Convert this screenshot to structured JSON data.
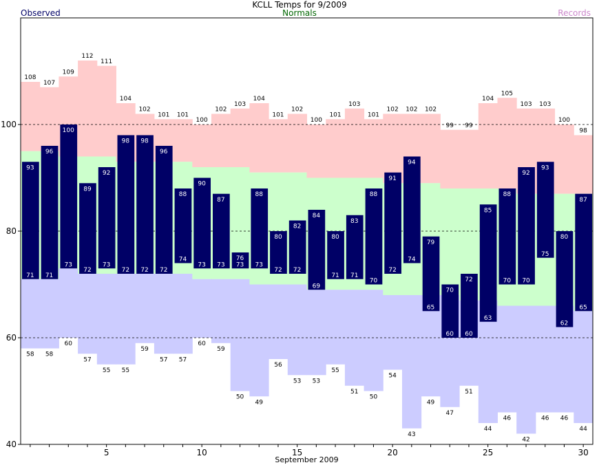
{
  "chart_data": {
    "type": "bar",
    "title": "KCLL Temps for 9/2009",
    "xlabel": "September 2009",
    "ylabel": "",
    "xlim": [
      0.5,
      30.5
    ],
    "ylim": [
      40,
      120
    ],
    "yticks": [
      40,
      60,
      80,
      100
    ],
    "xticks": [
      5,
      10,
      15,
      20,
      25,
      30
    ],
    "gridlines": [
      60,
      80,
      100
    ],
    "legend": {
      "observed": "Observed",
      "normals": "Normals",
      "records": "Records"
    },
    "colors": {
      "observed": "#000066",
      "normals": "#ccffcc",
      "record_high": "#ffcccc",
      "record_low": "#ccccff",
      "legend_observed": "#000066",
      "legend_normals": "#006600",
      "legend_records": "#cc88cc"
    },
    "days": [
      1,
      2,
      3,
      4,
      5,
      6,
      7,
      8,
      9,
      10,
      11,
      12,
      13,
      14,
      15,
      16,
      17,
      18,
      19,
      20,
      21,
      22,
      23,
      24,
      25,
      26,
      27,
      28,
      29,
      30
    ],
    "series": [
      {
        "name": "Observed high",
        "values": [
          93,
          96,
          100,
          89,
          92,
          98,
          98,
          96,
          88,
          90,
          87,
          76,
          88,
          80,
          82,
          84,
          80,
          83,
          88,
          91,
          94,
          79,
          70,
          72,
          85,
          88,
          92,
          93,
          80,
          87
        ]
      },
      {
        "name": "Observed low",
        "values": [
          71,
          71,
          73,
          72,
          73,
          72,
          72,
          72,
          74,
          73,
          73,
          73,
          73,
          72,
          72,
          69,
          71,
          71,
          70,
          72,
          74,
          65,
          60,
          60,
          63,
          70,
          70,
          75,
          62,
          65
        ]
      },
      {
        "name": "Normal high",
        "values": [
          95,
          95,
          94,
          94,
          94,
          93,
          93,
          93,
          93,
          92,
          92,
          92,
          91,
          91,
          91,
          90,
          90,
          90,
          90,
          89,
          89,
          89,
          88,
          88,
          88,
          88,
          87,
          87,
          87,
          87
        ]
      },
      {
        "name": "Normal low",
        "values": [
          71,
          71,
          73,
          72,
          72,
          72,
          72,
          72,
          72,
          71,
          71,
          71,
          70,
          70,
          70,
          69,
          69,
          69,
          69,
          68,
          68,
          68,
          68,
          67,
          67,
          66,
          66,
          66,
          66,
          65
        ]
      },
      {
        "name": "Record high",
        "values": [
          108,
          107,
          109,
          112,
          111,
          104,
          102,
          101,
          101,
          100,
          102,
          103,
          104,
          101,
          102,
          100,
          101,
          103,
          101,
          102,
          102,
          102,
          99,
          99,
          104,
          105,
          103,
          103,
          100,
          98
        ]
      },
      {
        "name": "Record low",
        "values": [
          58,
          58,
          60,
          57,
          55,
          55,
          59,
          57,
          57,
          60,
          59,
          50,
          49,
          56,
          53,
          53,
          55,
          51,
          50,
          54,
          43,
          49,
          47,
          51,
          44,
          46,
          42,
          46,
          46,
          44
        ]
      }
    ]
  }
}
